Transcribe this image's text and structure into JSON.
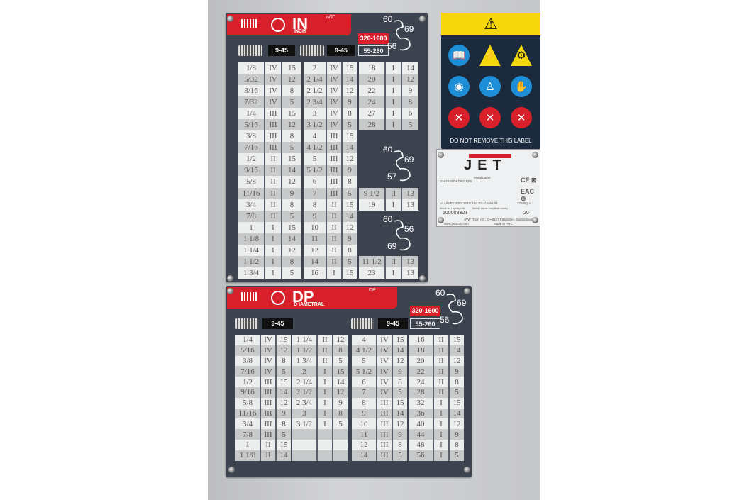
{
  "inch_plate": {
    "title": "IN",
    "subtitle": "INCH",
    "pitch_label": "n/1\"",
    "range_1": "9-45",
    "range_2": "9-45",
    "range_3": "55-260",
    "speed": "320-1600",
    "gear_top": [
      "60",
      "69",
      "56"
    ],
    "gear_mid": [
      "60",
      "69",
      "57"
    ],
    "gear_bot": [
      "60",
      "56",
      "69"
    ],
    "blocks": [
      [
        [
          "1/8",
          "IV",
          "15"
        ],
        [
          "5/32",
          "IV",
          "12"
        ],
        [
          "3/16",
          "IV",
          "8"
        ],
        [
          "7/32",
          "IV",
          "5"
        ],
        [
          "1/4",
          "III",
          "15"
        ],
        [
          "5/16",
          "III",
          "12"
        ],
        [
          "3/8",
          "III",
          "8"
        ],
        [
          "7/16",
          "III",
          "5"
        ],
        [
          "1/2",
          "II",
          "15"
        ],
        [
          "9/16",
          "II",
          "14"
        ],
        [
          "5/8",
          "II",
          "12"
        ],
        [
          "11/16",
          "II",
          "9"
        ],
        [
          "3/4",
          "II",
          "8"
        ],
        [
          "7/8",
          "II",
          "5"
        ],
        [
          "1",
          "I",
          "15"
        ],
        [
          "1 1/8",
          "I",
          "14"
        ],
        [
          "1 1/4",
          "I",
          "12"
        ],
        [
          "1 1/2",
          "I",
          "8"
        ],
        [
          "1 3/4",
          "I",
          "5"
        ]
      ],
      [
        [
          "2",
          "IV",
          "15"
        ],
        [
          "2 1/4",
          "IV",
          "14"
        ],
        [
          "2 1/2",
          "IV",
          "12"
        ],
        [
          "2 3/4",
          "IV",
          "9"
        ],
        [
          "3",
          "IV",
          "8"
        ],
        [
          "3 1/2",
          "IV",
          "5"
        ],
        [
          "4",
          "III",
          "15"
        ],
        [
          "4 1/2",
          "III",
          "14"
        ],
        [
          "5",
          "III",
          "12"
        ],
        [
          "5 1/2",
          "III",
          "9"
        ],
        [
          "6",
          "III",
          "8"
        ],
        [
          "7",
          "III",
          "5"
        ],
        [
          "8",
          "II",
          "15"
        ],
        [
          "9",
          "II",
          "14"
        ],
        [
          "10",
          "II",
          "12"
        ],
        [
          "11",
          "II",
          "9"
        ],
        [
          "12",
          "II",
          "8"
        ],
        [
          "14",
          "II",
          "5"
        ],
        [
          "16",
          "I",
          "15"
        ]
      ],
      [
        [
          "18",
          "I",
          "14"
        ],
        [
          "20",
          "I",
          "12"
        ],
        [
          "22",
          "I",
          "9"
        ],
        [
          "24",
          "I",
          "8"
        ],
        [
          "27",
          "I",
          "6"
        ],
        [
          "28",
          "I",
          "5"
        ],
        null,
        null,
        null,
        null,
        null,
        [
          "9 1/2",
          "II",
          "13"
        ],
        [
          "19",
          "I",
          "13"
        ],
        null,
        null,
        null,
        null,
        [
          "11 1/2",
          "II",
          "13"
        ],
        [
          "23",
          "I",
          "13"
        ]
      ]
    ]
  },
  "dp_plate": {
    "title": "DP",
    "subtitle": "D IAMETRAL",
    "pitch_label": "DP",
    "range_1": "9-45",
    "range_2": "9-45",
    "range_3": "55-260",
    "speed": "320-1600",
    "gear": [
      "60",
      "69",
      "56"
    ],
    "blocks": [
      [
        [
          "1/4",
          "IV",
          "15"
        ],
        [
          "5/16",
          "IV",
          "12"
        ],
        [
          "3/8",
          "IV",
          "8"
        ],
        [
          "7/16",
          "IV",
          "5"
        ],
        [
          "1/2",
          "III",
          "15"
        ],
        [
          "9/16",
          "III",
          "14"
        ],
        [
          "5/8",
          "III",
          "12"
        ],
        [
          "11/16",
          "III",
          "9"
        ],
        [
          "3/4",
          "III",
          "8"
        ],
        [
          "7/8",
          "III",
          "5"
        ],
        [
          "1",
          "II",
          "15"
        ],
        [
          "1 1/8",
          "II",
          "14"
        ]
      ],
      [
        [
          "1 1/4",
          "II",
          "12"
        ],
        [
          "1 1/2",
          "II",
          "8"
        ],
        [
          "1 3/4",
          "II",
          "5"
        ],
        [
          "2",
          "I",
          "15"
        ],
        [
          "2 1/4",
          "I",
          "14"
        ],
        [
          "2 1/2",
          "I",
          "12"
        ],
        [
          "2 3/4",
          "I",
          "9"
        ],
        [
          "3",
          "I",
          "8"
        ],
        [
          "3 1/2",
          "I",
          "5"
        ],
        [
          "",
          "",
          ""
        ],
        [
          "",
          "",
          ""
        ],
        [
          "",
          "",
          ""
        ]
      ],
      [
        [
          "4",
          "IV",
          "15"
        ],
        [
          "4 1/2",
          "IV",
          "14"
        ],
        [
          "5",
          "IV",
          "12"
        ],
        [
          "5 1/2",
          "IV",
          "9"
        ],
        [
          "6",
          "IV",
          "8"
        ],
        [
          "7",
          "IV",
          "5"
        ],
        [
          "8",
          "III",
          "15"
        ],
        [
          "9",
          "III",
          "14"
        ],
        [
          "10",
          "III",
          "12"
        ],
        [
          "11",
          "III",
          "9"
        ],
        [
          "12",
          "III",
          "8"
        ],
        [
          "14",
          "III",
          "5"
        ]
      ],
      [
        [
          "16",
          "II",
          "15"
        ],
        [
          "18",
          "II",
          "14"
        ],
        [
          "20",
          "II",
          "12"
        ],
        [
          "22",
          "II",
          "9"
        ],
        [
          "24",
          "II",
          "8"
        ],
        [
          "28",
          "II",
          "5"
        ],
        [
          "32",
          "I",
          "15"
        ],
        [
          "36",
          "I",
          "14"
        ],
        [
          "40",
          "I",
          "12"
        ],
        [
          "44",
          "I",
          "9"
        ],
        [
          "48",
          "I",
          "8"
        ],
        [
          "56",
          "I",
          "5"
        ]
      ]
    ]
  },
  "warning_label": {
    "footer": "DO NOT REMOVE THIS LABEL",
    "icons": [
      "warning-triangle",
      "read-manual",
      "electric-hazard",
      "entanglement-hazard",
      "eye-protection",
      "protective-clothing",
      "hearing-protection",
      "no-gloves",
      "no-loose-clothing",
      "no-hand-contact"
    ]
  },
  "nameplate": {
    "brand": "JET",
    "model": "GH-2040ZH DRO RFS",
    "desc": "Metal Lathe",
    "power": "~3 L/N/PE 400V 50Hz 18A P2=7.5kW S1",
    "weight": "2750kg/ кг",
    "article_label": "Article No / артикул №",
    "article": "50000830T",
    "serial_label": "Serial / серия / серійний номер",
    "year": "20",
    "company": "JPW (Tool) AG, CH-8117 Fällanden, Switzerland",
    "web": "www.jettools.com",
    "made": "Made in PRC"
  }
}
